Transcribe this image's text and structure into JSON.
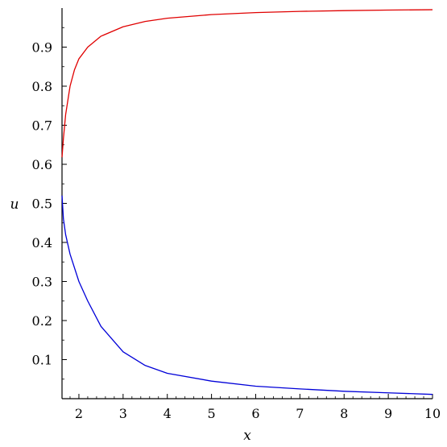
{
  "chart_data": {
    "type": "line",
    "title": "",
    "xlabel": "x",
    "ylabel": "u",
    "xlim": [
      1.618,
      10
    ],
    "ylim": [
      0,
      1
    ],
    "x_ticks": [
      2,
      3,
      4,
      5,
      6,
      7,
      8,
      9,
      10
    ],
    "x_tick_labels": [
      "2",
      "3",
      "4",
      "5",
      "6",
      "7",
      "8",
      "9",
      "10"
    ],
    "y_ticks": [
      0.1,
      0.2,
      0.3,
      0.4,
      0.5,
      0.6,
      0.7,
      0.8,
      0.9
    ],
    "y_tick_labels": [
      "0.1",
      "0.2",
      "0.3",
      "0.4",
      "0.5",
      "0.6",
      "0.7",
      "0.8",
      "0.9"
    ],
    "grid": false,
    "series": [
      {
        "color": "#e00000",
        "x": [
          1.618,
          1.65,
          1.7,
          1.8,
          1.9,
          2.0,
          2.2,
          2.5,
          3.0,
          3.5,
          4.0,
          5.0,
          6.0,
          7.0,
          8.0,
          9.0,
          10.0
        ],
        "y": [
          0.618,
          0.6667,
          0.7273,
          0.8,
          0.8421,
          0.87,
          0.9,
          0.928,
          0.952,
          0.9658,
          0.974,
          0.9833,
          0.9884,
          0.9915,
          0.9934,
          0.9948,
          0.9958
        ]
      },
      {
        "color": "#0000d8",
        "x": [
          1.618,
          1.65,
          1.7,
          1.8,
          2.0,
          2.2,
          2.5,
          3.0,
          3.5,
          4.0,
          5.0,
          6.0,
          7.0,
          8.0,
          9.0,
          10.0
        ],
        "y": [
          0.52,
          0.46,
          0.42,
          0.37,
          0.3,
          0.25,
          0.185,
          0.12,
          0.085,
          0.065,
          0.045,
          0.032,
          0.025,
          0.019,
          0.015,
          0.011
        ]
      }
    ]
  }
}
